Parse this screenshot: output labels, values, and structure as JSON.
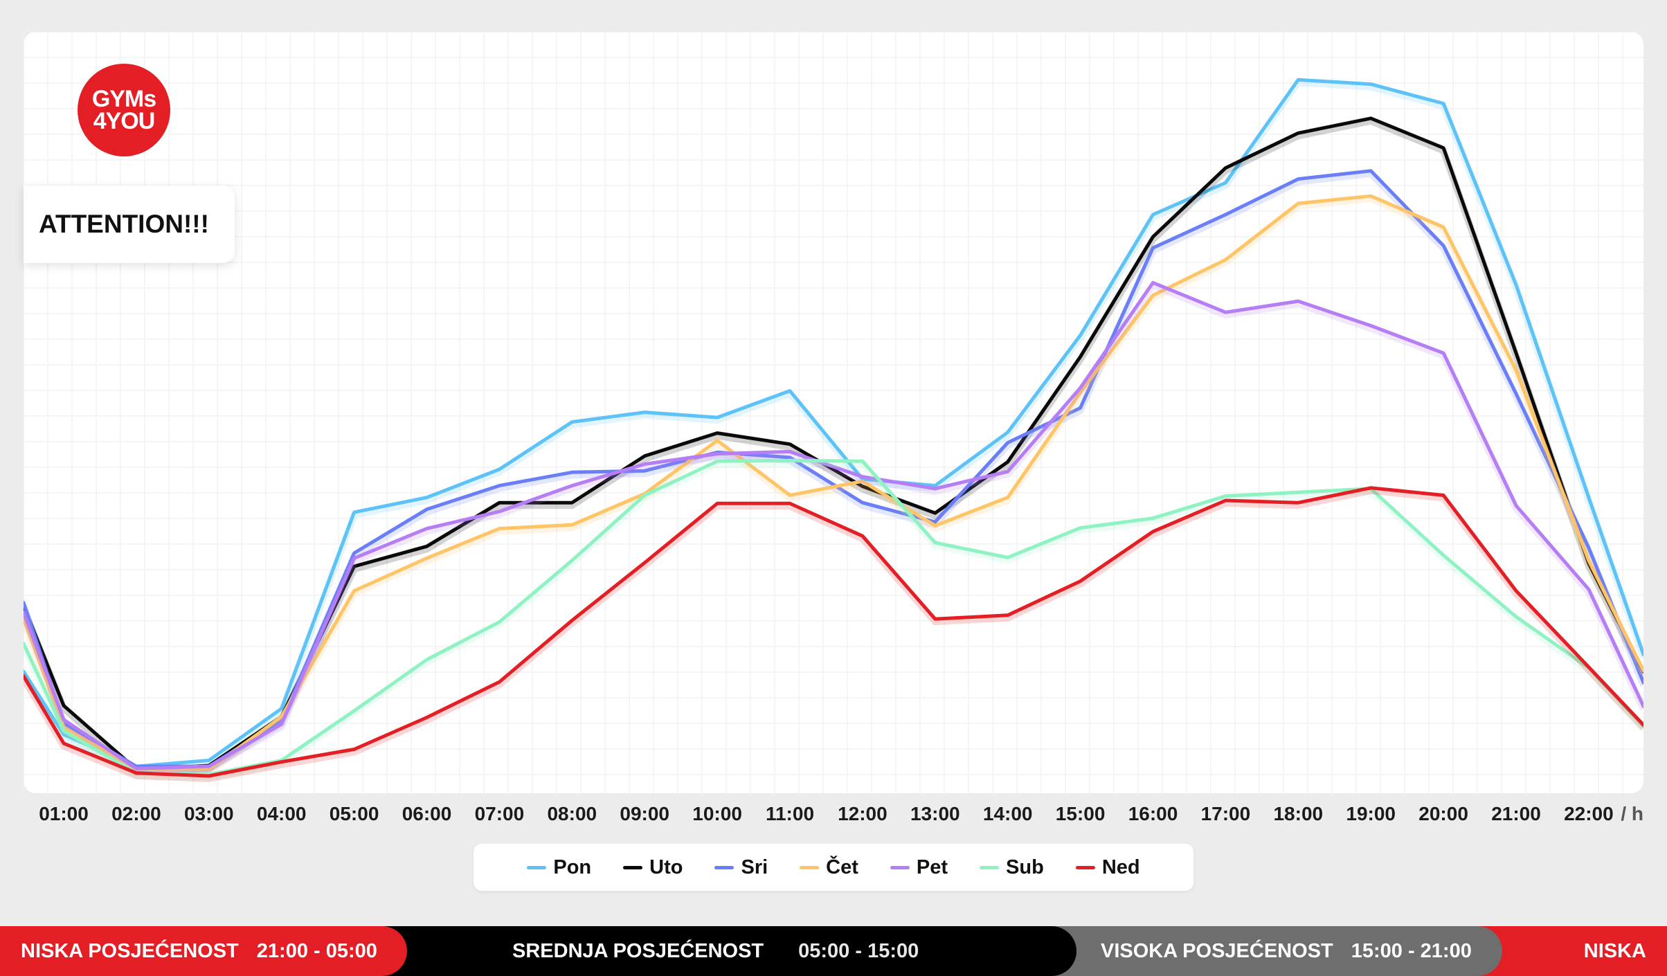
{
  "logo": {
    "line1": "GYMs",
    "line2": "4YOU"
  },
  "notice": {
    "text": "ATTENTION!!!"
  },
  "chart_data": {
    "type": "line",
    "x_unit": "/ h",
    "categories": [
      "00:30",
      "01:00",
      "02:00",
      "03:00",
      "04:00",
      "05:00",
      "06:00",
      "07:00",
      "08:00",
      "09:00",
      "10:00",
      "11:00",
      "12:00",
      "13:00",
      "14:00",
      "15:00",
      "16:00",
      "17:00",
      "18:00",
      "19:00",
      "20:00",
      "21:00",
      "22:00",
      "22:30"
    ],
    "tick_labels": [
      "01:00",
      "02:00",
      "03:00",
      "04:00",
      "05:00",
      "06:00",
      "07:00",
      "08:00",
      "09:00",
      "10:00",
      "11:00",
      "12:00",
      "13:00",
      "14:00",
      "15:00",
      "16:00",
      "17:00",
      "18:00",
      "19:00",
      "20:00",
      "21:00",
      "22:00"
    ],
    "ylim": [
      0,
      100
    ],
    "grid": true,
    "legend_position": "bottom",
    "series": [
      {
        "name": "Pon",
        "color": "#5cc2f7",
        "values": [
          15.5,
          7.0,
          2.7,
          3.5,
          10.5,
          37.0,
          39.0,
          42.8,
          49.2,
          50.5,
          49.8,
          53.4,
          41.5,
          40.6,
          47.8,
          60.9,
          77.2,
          81.5,
          95.4,
          94.8,
          92.2,
          67.7,
          39.0,
          17.8
        ]
      },
      {
        "name": "Uto",
        "color": "#0a0a0a",
        "values": [
          24.4,
          10.9,
          2.3,
          2.8,
          9.4,
          29.7,
          32.4,
          38.3,
          38.3,
          44.6,
          47.7,
          46.2,
          40.5,
          36.9,
          43.8,
          58.0,
          74.2,
          83.5,
          88.2,
          90.2,
          86.2,
          58.5,
          30.1,
          15.5
        ]
      },
      {
        "name": "Sri",
        "color": "#6a7ef7",
        "values": [
          24.8,
          8.5,
          2.7,
          2.7,
          8.8,
          31.5,
          37.4,
          40.6,
          42.4,
          42.6,
          45.1,
          44.4,
          38.3,
          35.7,
          46.4,
          51.1,
          72.7,
          77.2,
          82.0,
          83.1,
          73.0,
          53.0,
          32.2,
          14.0
        ]
      },
      {
        "name": "Čet",
        "color": "#ffc466",
        "values": [
          22.7,
          8.0,
          2.3,
          2.3,
          9.4,
          26.4,
          30.8,
          34.8,
          35.3,
          39.5,
          46.7,
          39.3,
          41.2,
          35.2,
          39.0,
          53.2,
          66.3,
          71.1,
          78.7,
          79.7,
          75.5,
          56.2,
          30.5,
          15.6
        ]
      },
      {
        "name": "Pet",
        "color": "#b57ef5",
        "values": [
          23.5,
          9.0,
          2.4,
          2.7,
          8.4,
          30.8,
          34.8,
          37.1,
          40.6,
          43.5,
          44.9,
          45.2,
          41.8,
          40.2,
          42.5,
          53.8,
          68.0,
          64.0,
          65.5,
          62.2,
          58.5,
          37.9,
          26.6,
          10.8
        ]
      },
      {
        "name": "Sub",
        "color": "#8ef2c2",
        "values": [
          19.3,
          7.5,
          1.8,
          1.6,
          3.5,
          10.2,
          17.1,
          22.2,
          30.5,
          39.3,
          43.9,
          44.0,
          43.9,
          32.9,
          30.9,
          34.9,
          36.2,
          39.2,
          39.7,
          40.2,
          31.2,
          22.9,
          16.0,
          8.1
        ]
      },
      {
        "name": "Ned",
        "color": "#e31e24",
        "values": [
          14.9,
          5.8,
          1.8,
          1.4,
          3.3,
          5.0,
          9.3,
          14.1,
          22.4,
          30.2,
          38.2,
          38.2,
          33.8,
          22.6,
          23.1,
          27.7,
          34.4,
          38.6,
          38.3,
          40.3,
          39.3,
          26.4,
          16.1,
          8.3
        ]
      }
    ]
  },
  "legend": {
    "items": [
      {
        "label": "Pon",
        "color": "#5cc2f7"
      },
      {
        "label": "Uto",
        "color": "#0a0a0a"
      },
      {
        "label": "Sri",
        "color": "#6a7ef7"
      },
      {
        "label": "Čet",
        "color": "#ffc466"
      },
      {
        "label": "Pet",
        "color": "#b57ef5"
      },
      {
        "label": "Sub",
        "color": "#8ef2c2"
      },
      {
        "label": "Ned",
        "color": "#e31e24"
      }
    ]
  },
  "bottom_bar": {
    "low_label": "NISKA POSJEĆENOST",
    "low_time": "21:00 - 05:00",
    "mid_label": "SREDNJA POSJEĆENOST",
    "mid_time": "05:00 - 15:00",
    "high_label": "VISOKA POSJEĆENOST",
    "high_time": "15:00 - 21:00",
    "tail_label": "NISKA",
    "colors": {
      "low": "#e31e24",
      "mid": "#000000",
      "high": "#6e6e6e"
    }
  }
}
